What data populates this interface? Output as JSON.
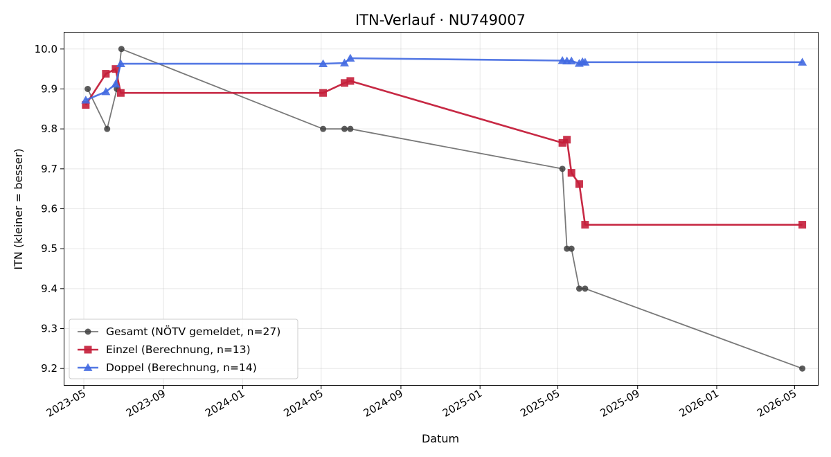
{
  "chart_data": {
    "type": "line",
    "title": "ITN-Verlauf · NU749007",
    "xlabel": "Datum",
    "ylabel": "ITN  (kleiner = besser)",
    "xlim": [
      "2023-03-31",
      "2026-06-07"
    ],
    "ylim": [
      9.157,
      10.043
    ],
    "xticks": [
      "2023-05",
      "2023-09",
      "2024-01",
      "2024-05",
      "2024-09",
      "2025-01",
      "2025-05",
      "2025-09",
      "2026-01",
      "2026-05"
    ],
    "yticks": [
      "9.2",
      "9.3",
      "9.4",
      "9.5",
      "9.6",
      "9.7",
      "9.8",
      "9.9",
      "10.0"
    ],
    "grid": true,
    "legend_position": "lower-left",
    "series": [
      {
        "name": "Gesamt (NÖTV gemeldet, n=27)",
        "color": "#404040",
        "marker": "circle",
        "points": [
          {
            "x": "2023-05-07",
            "y": 9.9
          },
          {
            "x": "2023-06-06",
            "y": 9.8
          },
          {
            "x": "2023-06-21",
            "y": 9.9
          },
          {
            "x": "2023-06-28",
            "y": 10.0
          },
          {
            "x": "2024-05-04",
            "y": 9.8
          },
          {
            "x": "2024-06-06",
            "y": 9.8
          },
          {
            "x": "2024-06-15",
            "y": 9.8
          },
          {
            "x": "2025-05-08",
            "y": 9.7
          },
          {
            "x": "2025-05-15",
            "y": 9.5
          },
          {
            "x": "2025-05-22",
            "y": 9.5
          },
          {
            "x": "2025-06-03",
            "y": 9.4
          },
          {
            "x": "2025-06-12",
            "y": 9.4
          },
          {
            "x": "2026-05-13",
            "y": 9.2
          }
        ]
      },
      {
        "name": "Einzel (Berechnung, n=13)",
        "color": "#c41e3a",
        "marker": "square",
        "points": [
          {
            "x": "2023-05-04",
            "y": 9.86
          },
          {
            "x": "2023-06-04",
            "y": 9.938
          },
          {
            "x": "2023-06-19",
            "y": 9.95
          },
          {
            "x": "2023-06-27",
            "y": 9.89
          },
          {
            "x": "2024-05-04",
            "y": 9.89
          },
          {
            "x": "2024-06-06",
            "y": 9.915
          },
          {
            "x": "2024-06-15",
            "y": 9.92
          },
          {
            "x": "2025-05-08",
            "y": 9.765
          },
          {
            "x": "2025-05-15",
            "y": 9.773
          },
          {
            "x": "2025-05-22",
            "y": 9.69
          },
          {
            "x": "2025-06-03",
            "y": 9.662
          },
          {
            "x": "2025-06-12",
            "y": 9.56
          },
          {
            "x": "2026-05-13",
            "y": 9.56
          }
        ]
      },
      {
        "name": "Doppel (Berechnung, n=14)",
        "color": "#4169e1",
        "marker": "triangle",
        "points": [
          {
            "x": "2023-05-04",
            "y": 9.872
          },
          {
            "x": "2023-06-04",
            "y": 9.893
          },
          {
            "x": "2023-06-19",
            "y": 9.912
          },
          {
            "x": "2023-06-27",
            "y": 9.963
          },
          {
            "x": "2024-05-04",
            "y": 9.963
          },
          {
            "x": "2024-06-06",
            "y": 9.965
          },
          {
            "x": "2024-06-15",
            "y": 9.977
          },
          {
            "x": "2025-05-08",
            "y": 9.971
          },
          {
            "x": "2025-05-15",
            "y": 9.97
          },
          {
            "x": "2025-05-22",
            "y": 9.97
          },
          {
            "x": "2025-06-03",
            "y": 9.964
          },
          {
            "x": "2025-06-08",
            "y": 9.968
          },
          {
            "x": "2025-06-12",
            "y": 9.967
          },
          {
            "x": "2026-05-13",
            "y": 9.967
          }
        ]
      }
    ]
  }
}
